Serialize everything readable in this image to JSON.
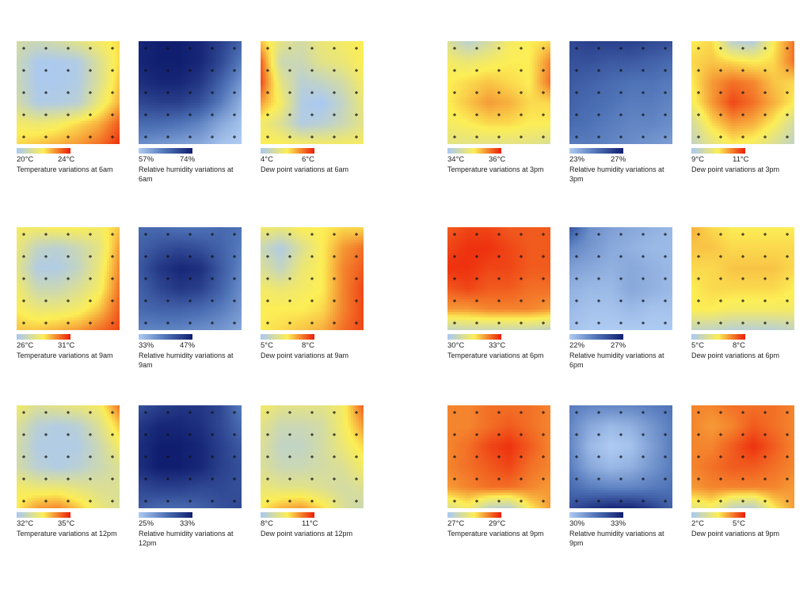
{
  "colors": {
    "temperature": [
      "#a9c8f4",
      "#fcee55",
      "#ec1c07"
    ],
    "dew_point": [
      "#a9c8f4",
      "#fcee55",
      "#ec1c07"
    ],
    "humidity": [
      "#aecbf2",
      "#4f73b7",
      "#111e70"
    ]
  },
  "chart_data": [
    {
      "type": "heatmap",
      "kind": "temperature",
      "range_labels": [
        "20°C",
        "24°C"
      ],
      "caption": "Temperature variations at 6am",
      "grid": [
        [
          0.25,
          0.2,
          0.25,
          0.35,
          0.45,
          0.55
        ],
        [
          0.2,
          0.02,
          0.02,
          0.05,
          0.3,
          0.55
        ],
        [
          0.2,
          0.02,
          0.02,
          0.05,
          0.3,
          0.6
        ],
        [
          0.25,
          0.05,
          0.05,
          0.1,
          0.4,
          0.65
        ],
        [
          0.45,
          0.4,
          0.45,
          0.55,
          0.65,
          0.85
        ],
        [
          0.55,
          0.6,
          0.65,
          0.7,
          0.8,
          0.95
        ]
      ]
    },
    {
      "type": "heatmap",
      "kind": "humidity",
      "range_labels": [
        "57%",
        "74%"
      ],
      "caption": "Relative humidity variations at 6am",
      "grid": [
        [
          0.95,
          1,
          1,
          0.95,
          0.8,
          0.6
        ],
        [
          0.95,
          1,
          1,
          0.95,
          0.75,
          0.45
        ],
        [
          0.9,
          0.95,
          0.95,
          0.85,
          0.6,
          0.3
        ],
        [
          0.75,
          0.8,
          0.8,
          0.7,
          0.45,
          0.15
        ],
        [
          0.55,
          0.55,
          0.5,
          0.4,
          0.2,
          0.05
        ],
        [
          0.35,
          0.3,
          0.25,
          0.2,
          0.05,
          0
        ]
      ]
    },
    {
      "type": "heatmap",
      "kind": "dew_point",
      "range_labels": [
        "4°C",
        "6°C"
      ],
      "caption": "Dew point variations at 6am",
      "grid": [
        [
          0.6,
          0.35,
          0.25,
          0.4,
          0.45,
          0.5
        ],
        [
          0.85,
          0.2,
          0.2,
          0.35,
          0.4,
          0.5
        ],
        [
          0.9,
          0.35,
          0.1,
          0.15,
          0.25,
          0.45
        ],
        [
          0.7,
          0.45,
          0.05,
          0.0,
          0.15,
          0.4
        ],
        [
          0.45,
          0.3,
          0.05,
          0.1,
          0.2,
          0.35
        ],
        [
          0.5,
          0.5,
          0.45,
          0.45,
          0.45,
          0.45
        ]
      ]
    },
    {
      "type": "heatmap",
      "kind": "temperature",
      "range_labels": [
        "34°C",
        "36°C"
      ],
      "caption": "Temperature variations at 3pm",
      "grid": [
        [
          0.3,
          0.1,
          0.25,
          0.45,
          0.5,
          0.55
        ],
        [
          0.45,
          0.4,
          0.45,
          0.5,
          0.5,
          0.75
        ],
        [
          0.5,
          0.55,
          0.6,
          0.55,
          0.5,
          0.8
        ],
        [
          0.5,
          0.6,
          0.7,
          0.65,
          0.55,
          0.55
        ],
        [
          0.45,
          0.5,
          0.55,
          0.55,
          0.5,
          0.5
        ],
        [
          0.35,
          0.35,
          0.35,
          0.35,
          0.35,
          0.3
        ]
      ]
    },
    {
      "type": "heatmap",
      "kind": "humidity",
      "range_labels": [
        "23%",
        "27%"
      ],
      "caption": "Relative humidity variations at 3pm",
      "grid": [
        [
          0.75,
          0.8,
          0.8,
          0.8,
          0.75,
          0.7
        ],
        [
          0.7,
          0.7,
          0.65,
          0.65,
          0.6,
          0.55
        ],
        [
          0.65,
          0.6,
          0.55,
          0.5,
          0.5,
          0.45
        ],
        [
          0.6,
          0.55,
          0.5,
          0.45,
          0.45,
          0.4
        ],
        [
          0.55,
          0.5,
          0.45,
          0.4,
          0.4,
          0.35
        ],
        [
          0.45,
          0.45,
          0.4,
          0.35,
          0.3,
          0.25
        ]
      ]
    },
    {
      "type": "heatmap",
      "kind": "dew_point",
      "range_labels": [
        "9°C",
        "11°C"
      ],
      "caption": "Dew point variations at 3pm",
      "grid": [
        [
          0.5,
          0.55,
          0.1,
          0.05,
          0.5,
          0.8
        ],
        [
          0.55,
          0.6,
          0.55,
          0.5,
          0.55,
          0.8
        ],
        [
          0.5,
          0.7,
          0.8,
          0.75,
          0.6,
          0.55
        ],
        [
          0.45,
          0.7,
          0.9,
          0.8,
          0.65,
          0.5
        ],
        [
          0.25,
          0.55,
          0.7,
          0.65,
          0.5,
          0.25
        ],
        [
          0.15,
          0.35,
          0.5,
          0.45,
          0.3,
          0.15
        ]
      ]
    },
    {
      "type": "heatmap",
      "kind": "temperature",
      "range_labels": [
        "26°C",
        "31°C"
      ],
      "caption": "Temperature variations at 9am",
      "grid": [
        [
          0.45,
          0.45,
          0.5,
          0.5,
          0.45,
          0.6
        ],
        [
          0.4,
          0.15,
          0.1,
          0.2,
          0.35,
          0.7
        ],
        [
          0.35,
          0.05,
          0.05,
          0.15,
          0.4,
          0.75
        ],
        [
          0.45,
          0.2,
          0.2,
          0.3,
          0.45,
          0.8
        ],
        [
          0.5,
          0.4,
          0.4,
          0.45,
          0.6,
          0.85
        ],
        [
          0.6,
          0.6,
          0.65,
          0.7,
          0.8,
          0.9
        ]
      ]
    },
    {
      "type": "heatmap",
      "kind": "humidity",
      "range_labels": [
        "33%",
        "47%"
      ],
      "caption": "Relative humidity variations at 9am",
      "grid": [
        [
          0.55,
          0.55,
          0.5,
          0.5,
          0.55,
          0.5
        ],
        [
          0.6,
          0.7,
          0.75,
          0.7,
          0.6,
          0.45
        ],
        [
          0.65,
          0.85,
          0.95,
          0.9,
          0.65,
          0.4
        ],
        [
          0.6,
          0.75,
          0.85,
          0.8,
          0.6,
          0.35
        ],
        [
          0.55,
          0.6,
          0.6,
          0.55,
          0.45,
          0.3
        ],
        [
          0.4,
          0.4,
          0.4,
          0.35,
          0.3,
          0.2
        ]
      ]
    },
    {
      "type": "heatmap",
      "kind": "dew_point",
      "range_labels": [
        "5°C",
        "8°C"
      ],
      "caption": "Dew point variations at 9am",
      "grid": [
        [
          0.45,
          0.4,
          0.5,
          0.5,
          0.55,
          0.55
        ],
        [
          0.2,
          0.05,
          0.3,
          0.5,
          0.7,
          0.8
        ],
        [
          0.3,
          0.15,
          0.4,
          0.5,
          0.75,
          0.85
        ],
        [
          0.45,
          0.4,
          0.45,
          0.5,
          0.75,
          0.9
        ],
        [
          0.5,
          0.5,
          0.5,
          0.55,
          0.75,
          0.9
        ],
        [
          0.5,
          0.55,
          0.6,
          0.65,
          0.8,
          0.9
        ]
      ]
    },
    {
      "type": "heatmap",
      "kind": "temperature",
      "range_labels": [
        "30°C",
        "33°C"
      ],
      "caption": "Temperature variations at 6pm",
      "grid": [
        [
          0.85,
          0.9,
          0.9,
          0.85,
          0.85,
          0.85
        ],
        [
          0.9,
          0.95,
          0.95,
          0.9,
          0.85,
          0.85
        ],
        [
          0.95,
          0.95,
          0.9,
          0.9,
          0.85,
          0.85
        ],
        [
          0.85,
          0.9,
          0.85,
          0.85,
          0.8,
          0.8
        ],
        [
          0.7,
          0.7,
          0.75,
          0.75,
          0.75,
          0.7
        ],
        [
          0.15,
          0.2,
          0.2,
          0.2,
          0.2,
          0.15
        ]
      ]
    },
    {
      "type": "heatmap",
      "kind": "humidity",
      "range_labels": [
        "22%",
        "27%"
      ],
      "caption": "Relative humidity variations at 6pm",
      "grid": [
        [
          0.7,
          0.35,
          0.25,
          0.2,
          0.15,
          0.1
        ],
        [
          0.4,
          0.3,
          0.2,
          0.15,
          0.1,
          0.1
        ],
        [
          0.25,
          0.2,
          0.15,
          0.2,
          0.15,
          0.1
        ],
        [
          0.15,
          0.1,
          0.1,
          0.2,
          0.15,
          0.1
        ],
        [
          0.1,
          0.05,
          0.05,
          0.1,
          0.05,
          0.05
        ],
        [
          0.05,
          0.0,
          0.0,
          0.0,
          0.0,
          0.0
        ]
      ]
    },
    {
      "type": "heatmap",
      "kind": "dew_point",
      "range_labels": [
        "5°C",
        "8°C"
      ],
      "caption": "Dew point variations at 6pm",
      "grid": [
        [
          0.65,
          0.55,
          0.5,
          0.5,
          0.5,
          0.5
        ],
        [
          0.6,
          0.6,
          0.55,
          0.55,
          0.55,
          0.55
        ],
        [
          0.55,
          0.55,
          0.6,
          0.6,
          0.6,
          0.55
        ],
        [
          0.5,
          0.55,
          0.55,
          0.55,
          0.55,
          0.5
        ],
        [
          0.5,
          0.5,
          0.45,
          0.45,
          0.45,
          0.45
        ],
        [
          0.15,
          0.15,
          0.1,
          0.1,
          0.1,
          0.15
        ]
      ]
    },
    {
      "type": "heatmap",
      "kind": "temperature",
      "range_labels": [
        "32°C",
        "35°C"
      ],
      "caption": "Temperature variations at 12pm",
      "grid": [
        [
          0.45,
          0.3,
          0.35,
          0.4,
          0.45,
          0.8
        ],
        [
          0.3,
          0.1,
          0.05,
          0.1,
          0.3,
          0.6
        ],
        [
          0.25,
          0.05,
          0.05,
          0.05,
          0.2,
          0.45
        ],
        [
          0.25,
          0.1,
          0.05,
          0.1,
          0.2,
          0.3
        ],
        [
          0.45,
          0.4,
          0.4,
          0.35,
          0.3,
          0.3
        ],
        [
          0.5,
          0.7,
          0.75,
          0.6,
          0.4,
          0.3
        ]
      ]
    },
    {
      "type": "heatmap",
      "kind": "humidity",
      "range_labels": [
        "25%",
        "33%"
      ],
      "caption": "Relative humidity variations at 12pm",
      "grid": [
        [
          0.7,
          0.8,
          0.85,
          0.85,
          0.75,
          0.45
        ],
        [
          0.85,
          0.95,
          0.95,
          0.9,
          0.75,
          0.55
        ],
        [
          0.9,
          1,
          1,
          0.95,
          0.8,
          0.65
        ],
        [
          0.9,
          1,
          1,
          0.95,
          0.8,
          0.7
        ],
        [
          0.75,
          0.8,
          0.8,
          0.75,
          0.75,
          0.7
        ],
        [
          0.65,
          0.55,
          0.55,
          0.6,
          0.7,
          0.75
        ]
      ]
    },
    {
      "type": "heatmap",
      "kind": "dew_point",
      "range_labels": [
        "8°C",
        "11°C"
      ],
      "caption": "Dew point variations at 12pm",
      "grid": [
        [
          0.45,
          0.35,
          0.35,
          0.35,
          0.45,
          0.85
        ],
        [
          0.35,
          0.2,
          0.2,
          0.25,
          0.45,
          0.7
        ],
        [
          0.3,
          0.15,
          0.15,
          0.25,
          0.4,
          0.55
        ],
        [
          0.3,
          0.2,
          0.2,
          0.25,
          0.3,
          0.45
        ],
        [
          0.4,
          0.35,
          0.35,
          0.3,
          0.25,
          0.3
        ],
        [
          0.5,
          0.65,
          0.7,
          0.55,
          0.3,
          0.2
        ]
      ]
    },
    {
      "type": "heatmap",
      "kind": "temperature",
      "range_labels": [
        "27°C",
        "29°C"
      ],
      "caption": "Temperature variations at 9pm",
      "grid": [
        [
          0.75,
          0.75,
          0.8,
          0.8,
          0.8,
          0.75
        ],
        [
          0.75,
          0.75,
          0.8,
          0.85,
          0.8,
          0.75
        ],
        [
          0.75,
          0.8,
          0.9,
          0.95,
          0.85,
          0.75
        ],
        [
          0.75,
          0.8,
          0.85,
          0.9,
          0.8,
          0.75
        ],
        [
          0.7,
          0.75,
          0.8,
          0.8,
          0.75,
          0.7
        ],
        [
          0.3,
          0.45,
          0.15,
          0.1,
          0.5,
          0.7
        ]
      ]
    },
    {
      "type": "heatmap",
      "kind": "humidity",
      "range_labels": [
        "30%",
        "33%"
      ],
      "caption": "Relative humidity variations at 9pm",
      "grid": [
        [
          0.45,
          0.4,
          0.4,
          0.4,
          0.45,
          0.5
        ],
        [
          0.4,
          0.2,
          0.1,
          0.15,
          0.3,
          0.45
        ],
        [
          0.4,
          0.1,
          0.0,
          0.05,
          0.25,
          0.45
        ],
        [
          0.45,
          0.2,
          0.1,
          0.15,
          0.3,
          0.45
        ],
        [
          0.55,
          0.45,
          0.4,
          0.4,
          0.45,
          0.5
        ],
        [
          0.7,
          0.85,
          0.95,
          0.95,
          0.8,
          0.6
        ]
      ]
    },
    {
      "type": "heatmap",
      "kind": "dew_point",
      "range_labels": [
        "2°C",
        "5°C"
      ],
      "caption": "Dew point variations at 9pm",
      "grid": [
        [
          0.75,
          0.75,
          0.8,
          0.8,
          0.8,
          0.75
        ],
        [
          0.75,
          0.7,
          0.75,
          0.85,
          0.8,
          0.75
        ],
        [
          0.75,
          0.75,
          0.85,
          0.95,
          0.85,
          0.75
        ],
        [
          0.75,
          0.8,
          0.85,
          0.85,
          0.8,
          0.75
        ],
        [
          0.7,
          0.75,
          0.75,
          0.75,
          0.75,
          0.7
        ],
        [
          0.35,
          0.45,
          0.15,
          0.1,
          0.5,
          0.7
        ]
      ]
    }
  ]
}
